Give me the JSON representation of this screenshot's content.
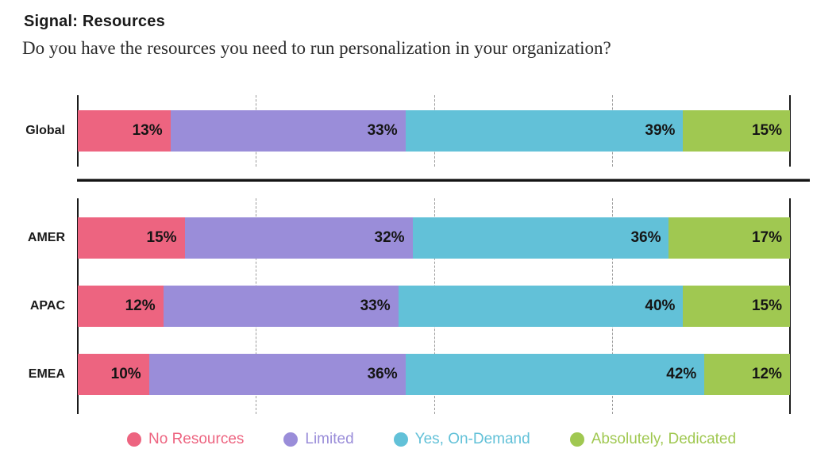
{
  "header": {
    "title": "Signal: Resources",
    "question": "Do you have the resources you need to run personalization in your organization?"
  },
  "chart_data": {
    "type": "bar",
    "variant": "horizontal-stacked",
    "unit": "%",
    "xlim": [
      0,
      100
    ],
    "gridlines_percent": [
      25,
      50,
      75
    ],
    "grid_style": "dashed",
    "axis_lines_percent": [
      0,
      100
    ],
    "legend_position": "bottom",
    "value_label_format": "{value}%",
    "series": [
      {
        "name": "No Resources",
        "color": "#ED6480"
      },
      {
        "name": "Limited",
        "color": "#9A8DD9"
      },
      {
        "name": "Yes, On-Demand",
        "color": "#62C1D8"
      },
      {
        "name": "Absolutely, Dedicated",
        "color": "#A0C851"
      }
    ],
    "groups": [
      {
        "section": "global",
        "category": "Global",
        "values": [
          13,
          33,
          39,
          15
        ]
      },
      {
        "section": "regions",
        "category": "AMER",
        "values": [
          15,
          32,
          36,
          17
        ]
      },
      {
        "section": "regions",
        "category": "APAC",
        "values": [
          12,
          33,
          40,
          15
        ]
      },
      {
        "section": "regions",
        "category": "EMEA",
        "values": [
          10,
          36,
          42,
          12
        ]
      }
    ]
  }
}
